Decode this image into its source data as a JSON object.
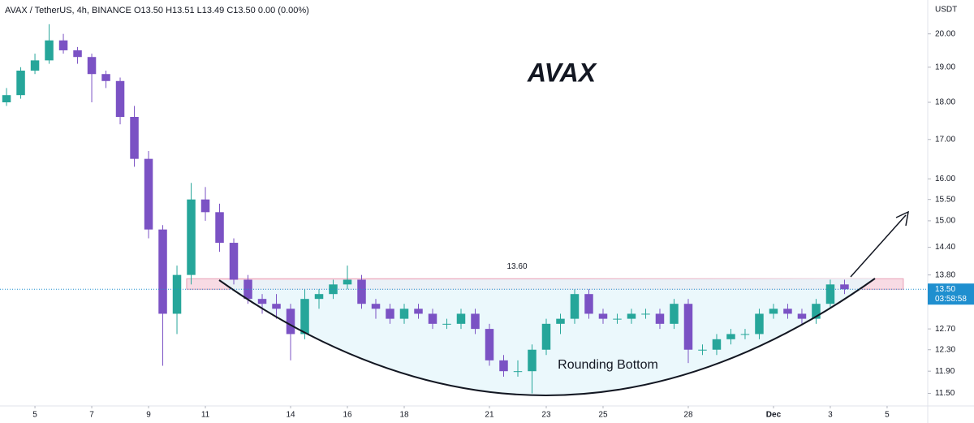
{
  "chart_data": {
    "type": "candlestick",
    "title": "AVAX / TetherUS, 4h, BINANCE  O13.50  H13.51  L13.49  C13.50  0.00 (0.00%)",
    "axis_unit": "USDT",
    "watermark_label": "AVAX",
    "pattern_label": "Rounding Bottom",
    "resistance_zone": {
      "label": "13.60",
      "low": 13.5,
      "high": 13.72,
      "x": [
        10.34,
        35.57
      ],
      "color": "#f8dbe4"
    },
    "last_price": {
      "value": 13.5,
      "label": "13.50",
      "countdown": "03:58:58",
      "color": "#1f8fcf"
    },
    "up_color": "#26a69a",
    "down_color": "#7b52c4",
    "log_scale": true,
    "grid": false,
    "xlim": [
      3.77,
      36.43
    ],
    "xticks": [
      5,
      7,
      9,
      11,
      14,
      16,
      18,
      21,
      23,
      25,
      28,
      {
        "value": 31,
        "label": "Dec"
      },
      {
        "value": 33,
        "label": "3"
      },
      {
        "value": 35,
        "label": "5"
      }
    ],
    "ylim": [
      11.28,
      21.07
    ],
    "yticks": [
      {
        "value": 20,
        "label": "20.00"
      },
      {
        "value": 19,
        "label": "19.00"
      },
      {
        "value": 18,
        "label": "18.00"
      },
      {
        "value": 17,
        "label": "17.00"
      },
      {
        "value": 16,
        "label": "16.00"
      },
      {
        "value": 15.5,
        "label": "15.50"
      },
      {
        "value": 15,
        "label": "15.00"
      },
      {
        "value": 14.4,
        "label": "14.40"
      },
      {
        "value": 13.8,
        "label": "13.80"
      },
      {
        "value": 12.7,
        "label": "12.70"
      },
      {
        "value": 12.3,
        "label": "12.30"
      },
      {
        "value": 11.9,
        "label": "11.90"
      },
      {
        "value": 11.5,
        "label": "11.50"
      }
    ],
    "x": [
      4,
      4.5,
      5,
      5.5,
      6,
      6.5,
      7,
      7.5,
      8,
      8.5,
      9,
      9.5,
      10,
      10.5,
      11,
      11.5,
      12,
      12.5,
      13,
      13.5,
      14,
      14.5,
      15,
      15.5,
      16,
      16.5,
      17,
      17.5,
      18,
      18.5,
      19,
      19.5,
      20,
      20.5,
      21,
      21.5,
      22,
      22.5,
      23,
      23.5,
      24,
      24.5,
      25,
      25.5,
      26,
      26.5,
      27,
      27.5,
      28,
      28.5,
      29,
      29.5,
      30,
      30.5,
      31,
      31.5,
      32,
      32.5,
      33,
      33.5
    ],
    "open": [
      18.0,
      18.2,
      18.9,
      19.2,
      19.8,
      19.5,
      19.3,
      18.8,
      18.6,
      17.6,
      16.5,
      14.8,
      13.0,
      13.8,
      15.5,
      15.2,
      14.5,
      13.7,
      13.3,
      13.2,
      13.1,
      12.6,
      13.3,
      13.4,
      13.6,
      13.7,
      13.2,
      13.1,
      12.9,
      13.1,
      13.0,
      12.8,
      12.8,
      13.0,
      12.7,
      12.1,
      11.9,
      11.9,
      12.3,
      12.8,
      12.9,
      13.4,
      13.0,
      12.9,
      12.9,
      13.0,
      13.0,
      12.8,
      13.2,
      12.3,
      12.3,
      12.5,
      12.6,
      12.6,
      13.0,
      13.1,
      13.0,
      12.9,
      13.2,
      13.6
    ],
    "high": [
      18.4,
      19.0,
      19.4,
      20.3,
      20.0,
      19.6,
      19.4,
      18.9,
      18.7,
      17.9,
      16.7,
      14.9,
      14.0,
      15.9,
      15.8,
      15.4,
      14.6,
      13.8,
      13.4,
      13.4,
      13.2,
      13.5,
      13.5,
      13.7,
      14.0,
      13.8,
      13.3,
      13.2,
      13.2,
      13.2,
      13.1,
      12.9,
      13.1,
      13.1,
      12.8,
      12.2,
      12.1,
      12.4,
      12.9,
      13.0,
      13.5,
      13.5,
      13.1,
      13.0,
      13.1,
      13.1,
      13.1,
      13.3,
      13.3,
      12.4,
      12.6,
      12.7,
      12.7,
      13.1,
      13.2,
      13.2,
      13.1,
      13.3,
      13.7,
      13.7
    ],
    "low": [
      17.9,
      18.1,
      18.8,
      19.1,
      19.4,
      19.1,
      18.0,
      18.4,
      17.4,
      16.3,
      14.6,
      12.0,
      12.6,
      13.6,
      15.0,
      14.3,
      13.6,
      13.2,
      13.0,
      12.9,
      12.1,
      12.5,
      13.1,
      13.3,
      13.5,
      13.1,
      12.9,
      12.8,
      12.8,
      12.9,
      12.7,
      12.7,
      12.7,
      12.6,
      12.0,
      11.8,
      11.8,
      11.5,
      12.2,
      12.6,
      12.8,
      12.9,
      12.8,
      12.8,
      12.8,
      12.9,
      12.7,
      12.7,
      12.05,
      12.2,
      12.2,
      12.4,
      12.5,
      12.5,
      12.9,
      12.9,
      12.8,
      12.8,
      13.1,
      13.4
    ],
    "close": [
      18.2,
      18.9,
      19.2,
      19.8,
      19.5,
      19.3,
      18.8,
      18.6,
      17.6,
      16.5,
      14.8,
      13.0,
      13.8,
      15.5,
      15.2,
      14.5,
      13.7,
      13.3,
      13.2,
      13.1,
      12.6,
      13.3,
      13.4,
      13.6,
      13.7,
      13.2,
      13.1,
      12.9,
      13.1,
      13.0,
      12.8,
      12.8,
      13.0,
      12.7,
      12.1,
      11.9,
      11.9,
      12.3,
      12.8,
      12.9,
      13.4,
      13.0,
      12.9,
      12.9,
      13.0,
      13.0,
      12.8,
      13.2,
      12.3,
      12.3,
      12.5,
      12.6,
      12.6,
      13.0,
      13.1,
      13.0,
      12.9,
      13.2,
      13.6,
      13.5
    ]
  }
}
